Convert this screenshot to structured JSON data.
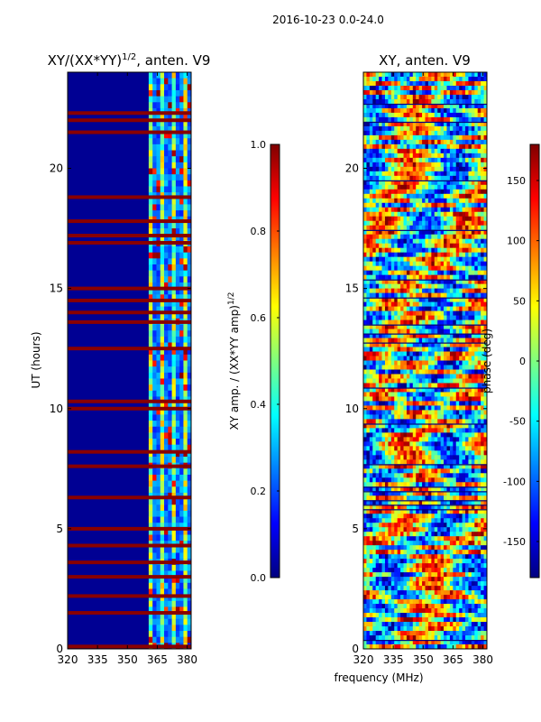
{
  "figure_title": "2016-10-23 0.0-24.0",
  "shared_xlabel": "frequency (MHz)",
  "colormap": [
    "#00007f",
    "#0000ff",
    "#007fff",
    "#00ffff",
    "#7fff7f",
    "#ffff00",
    "#ff7f00",
    "#ff0000",
    "#7f0000"
  ],
  "chart_data": [
    {
      "type": "heatmap",
      "title_prefix": "XY/(XX*YY)",
      "title_exponent": "1/2",
      "title_suffix": ", anten. V9",
      "xlabel": "",
      "ylabel": "UT (hours)",
      "xlim": [
        320,
        382
      ],
      "ylim": [
        0,
        24
      ],
      "xticks": [
        "320",
        "335",
        "350",
        "365",
        "380"
      ],
      "xtick_values": [
        320,
        335,
        350,
        365,
        380
      ],
      "yticks": [
        "0",
        "5",
        "10",
        "15",
        "20"
      ],
      "ytick_values": [
        0,
        5,
        10,
        15,
        20
      ],
      "description": "Normalized XY amplitude; mostly low (~0.05) with elevated values above 360 MHz and saturated horizontal bands",
      "saturated_bands_hours": [
        0.1,
        1.5,
        2.2,
        3.0,
        3.6,
        4.3,
        5.0,
        6.3,
        7.6,
        8.2,
        10.0,
        10.3,
        12.5,
        13.6,
        14.0,
        14.5,
        15.0,
        16.9,
        17.2,
        17.8,
        18.8,
        21.5,
        22.0,
        22.3
      ],
      "colorbar": {
        "label_prefix": "XY amp. / (XX*YY amp)",
        "label_exponent": "1/2",
        "range": [
          0.0,
          1.0
        ],
        "ticks": [
          "0.0",
          "0.2",
          "0.4",
          "0.6",
          "0.8",
          "1.0"
        ],
        "tick_values": [
          0.0,
          0.2,
          0.4,
          0.6,
          0.8,
          1.0
        ]
      }
    },
    {
      "type": "heatmap",
      "title": "XY, anten. V9",
      "xlabel": "frequency (MHz)",
      "ylabel": "",
      "xlim": [
        320,
        382
      ],
      "ylim": [
        0,
        24
      ],
      "xticks": [
        "320",
        "335",
        "350",
        "365",
        "380"
      ],
      "xtick_values": [
        320,
        335,
        350,
        365,
        380
      ],
      "yticks": [
        "0",
        "5",
        "10",
        "15",
        "20"
      ],
      "ytick_values": [
        0,
        5,
        10,
        15,
        20
      ],
      "description": "XY phase in degrees; noisy field spanning the full colour range with many horizontal bands",
      "colorbar": {
        "label": "phase (deg)",
        "range": [
          -180,
          180
        ],
        "ticks": [
          "-150",
          "-100",
          "-50",
          "0",
          "50",
          "100",
          "150"
        ],
        "tick_values": [
          -150,
          -100,
          -50,
          0,
          50,
          100,
          150
        ]
      }
    }
  ]
}
